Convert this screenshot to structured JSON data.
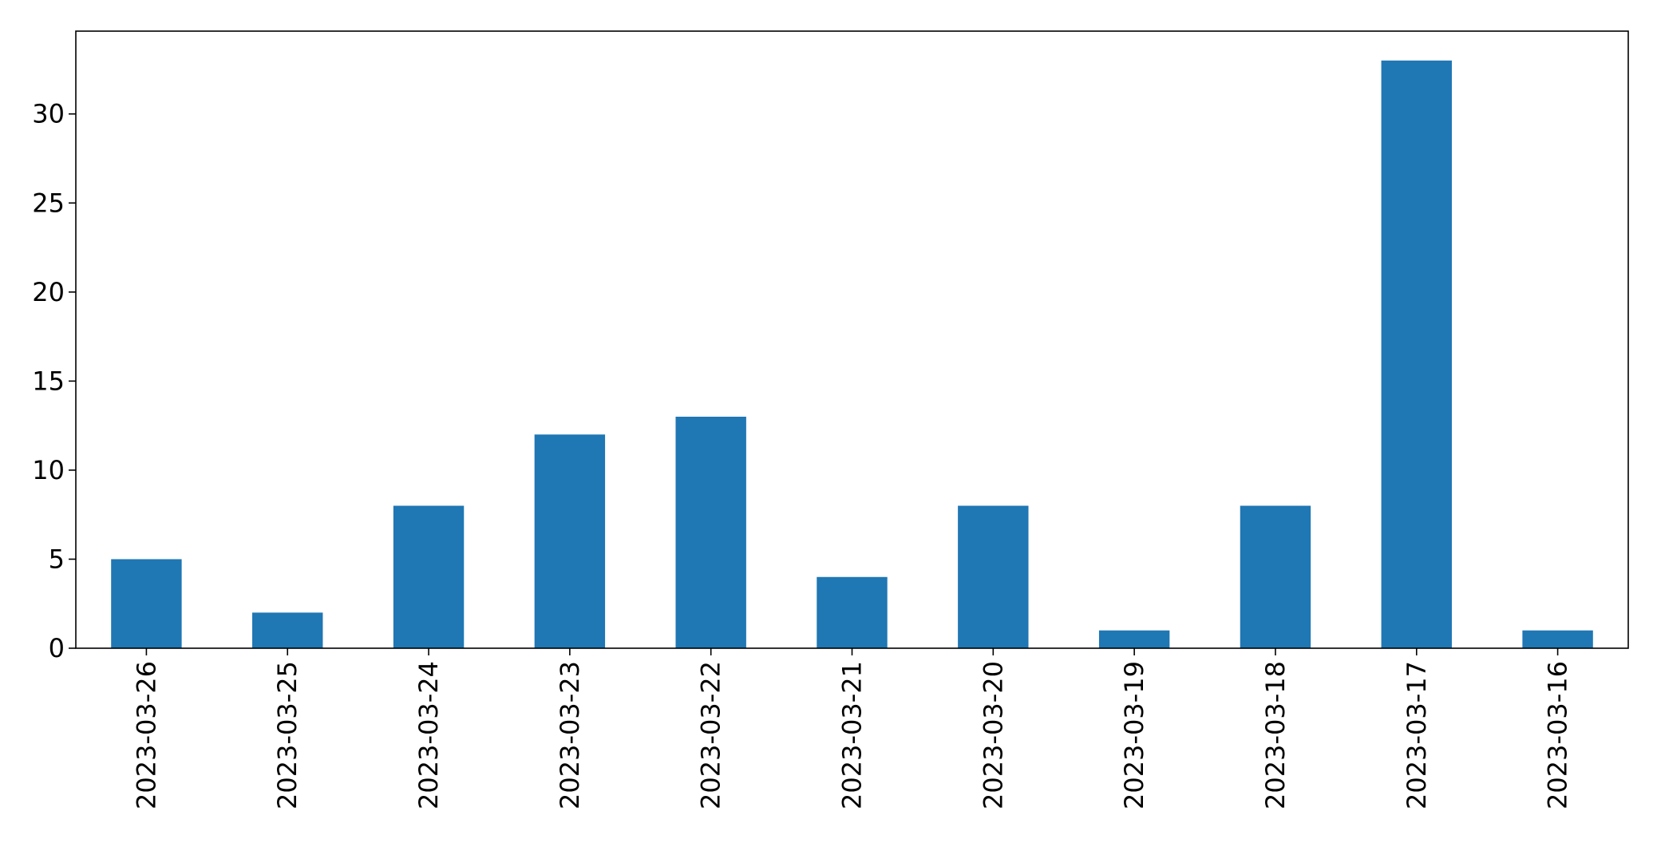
{
  "chart_data": {
    "type": "bar",
    "title": "",
    "xlabel": "",
    "ylabel": "",
    "categories": [
      "2023-03-26",
      "2023-03-25",
      "2023-03-24",
      "2023-03-23",
      "2023-03-22",
      "2023-03-21",
      "2023-03-20",
      "2023-03-19",
      "2023-03-18",
      "2023-03-17",
      "2023-03-16"
    ],
    "values": [
      5,
      2,
      8,
      12,
      13,
      4,
      8,
      1,
      8,
      33,
      1
    ],
    "ylim": [
      0,
      34.65
    ],
    "yticks": [
      0,
      5,
      10,
      15,
      20,
      25,
      30
    ],
    "bar_color": "#1f77b4",
    "grid": false,
    "legend": "none"
  }
}
